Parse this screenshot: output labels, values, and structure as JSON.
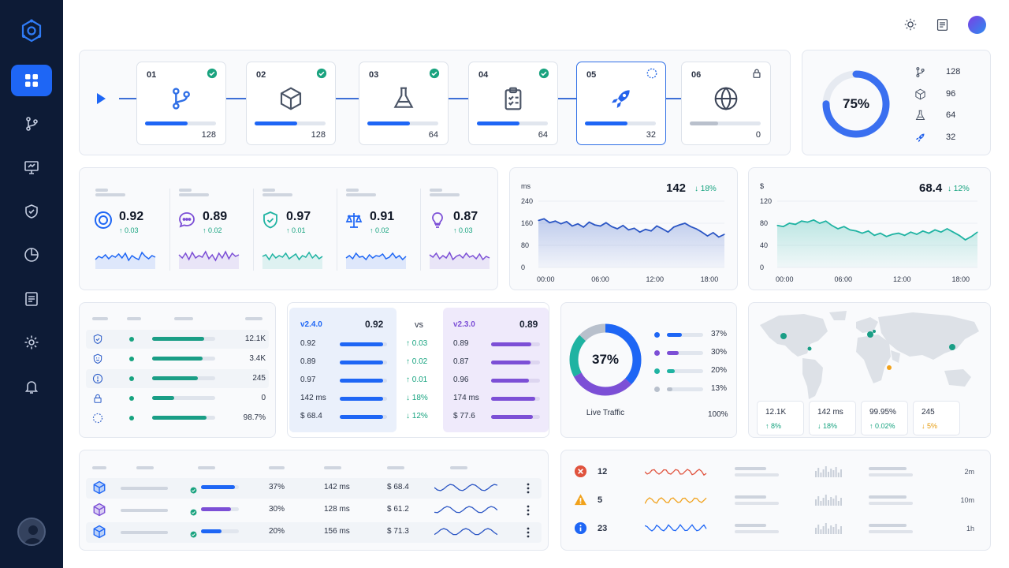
{
  "sidebar": {
    "items": [
      {
        "name": "dashboard",
        "active": true
      },
      {
        "name": "branches",
        "active": false
      },
      {
        "name": "monitor",
        "active": false
      },
      {
        "name": "security",
        "active": false
      },
      {
        "name": "reports",
        "active": false
      },
      {
        "name": "documents",
        "active": false
      },
      {
        "name": "settings",
        "active": false
      },
      {
        "name": "notifications",
        "active": false
      }
    ]
  },
  "colors": {
    "accent": "#1e66f5",
    "purple": "#7c4fd6",
    "teal": "#1fb3a2",
    "sidebar": "#0d1b36",
    "green": "#16a37f",
    "red": "#e0533e",
    "amber": "#f1a21c"
  },
  "pipeline": {
    "stages": [
      {
        "num": "01",
        "count": "128",
        "icon": "git-branch-icon",
        "status": "done",
        "progress": 0.6
      },
      {
        "num": "02",
        "count": "128",
        "icon": "box-icon",
        "status": "done",
        "progress": 0.6
      },
      {
        "num": "03",
        "count": "64",
        "icon": "flask-icon",
        "status": "done",
        "progress": 0.6
      },
      {
        "num": "04",
        "count": "64",
        "icon": "clipboard-icon",
        "status": "done",
        "progress": 0.6
      },
      {
        "num": "05",
        "count": "32",
        "icon": "rocket-icon",
        "status": "running",
        "progress": 0.6
      },
      {
        "num": "06",
        "count": "0",
        "icon": "globe-icon",
        "status": "locked",
        "progress": 0.4
      }
    ]
  },
  "summary": {
    "percent": "75%",
    "value": 0.75,
    "items": [
      {
        "icon": "git-branch-icon",
        "value": "128"
      },
      {
        "icon": "box-icon",
        "value": "96"
      },
      {
        "icon": "flask-icon",
        "value": "64"
      },
      {
        "icon": "rocket-icon",
        "value": "32"
      }
    ]
  },
  "metrics": [
    {
      "icon": "target-icon",
      "value": "0.92",
      "delta": "↑ 0.03",
      "color": "#1e66f5"
    },
    {
      "icon": "chat-icon",
      "value": "0.89",
      "delta": "↑ 0.02",
      "color": "#7c4fd6"
    },
    {
      "icon": "shield-icon",
      "value": "0.97",
      "delta": "↑ 0.01",
      "color": "#1fb3a2"
    },
    {
      "icon": "scale-icon",
      "value": "0.91",
      "delta": "↑ 0.02",
      "color": "#1e66f5"
    },
    {
      "icon": "bulb-icon",
      "value": "0.87",
      "delta": "↑ 0.03",
      "color": "#7c4fd6"
    }
  ],
  "chart_data": [
    {
      "type": "area",
      "unit": "ms",
      "value": "142",
      "delta": "↓ 18%",
      "ylim": [
        0,
        240
      ],
      "yticks": [
        "240",
        "160",
        "80",
        "0"
      ],
      "xticks": [
        "00:00",
        "06:00",
        "12:00",
        "18:00"
      ],
      "values": [
        170,
        176,
        162,
        168,
        158,
        166,
        150,
        158,
        146,
        164,
        154,
        150,
        162,
        148,
        140,
        152,
        136,
        142,
        128,
        138,
        132,
        150,
        140,
        128,
        146,
        154,
        160,
        148,
        140,
        128,
        114,
        126,
        110,
        120
      ]
    },
    {
      "type": "area",
      "unit": "$",
      "value": "68.4",
      "delta": "↓ 12%",
      "ylim": [
        0,
        120
      ],
      "yticks": [
        "120",
        "80",
        "40",
        "0"
      ],
      "xticks": [
        "00:00",
        "06:00",
        "12:00",
        "18:00"
      ],
      "values": [
        76,
        74,
        80,
        78,
        84,
        82,
        86,
        80,
        84,
        76,
        70,
        74,
        68,
        66,
        62,
        66,
        58,
        62,
        56,
        60,
        62,
        58,
        64,
        60,
        66,
        62,
        68,
        64,
        70,
        64,
        58,
        50,
        56,
        64
      ]
    },
    {
      "type": "pie",
      "title": "Live Traffic",
      "center": "37%",
      "total": "100%",
      "series": [
        {
          "value": 37,
          "label": "37%",
          "color": "#1e66f5"
        },
        {
          "value": 30,
          "label": "30%",
          "color": "#7c4fd6"
        },
        {
          "value": 20,
          "label": "20%",
          "color": "#1fb3a2"
        },
        {
          "value": 13,
          "label": "13%",
          "color": "#b8c0cc"
        }
      ]
    }
  ],
  "status_list": [
    {
      "icon": "shield-icon",
      "value": "12.1K",
      "fill": 0.82
    },
    {
      "icon": "mask-icon",
      "value": "3.4K",
      "fill": 0.8
    },
    {
      "icon": "alert-circle-icon",
      "value": "245",
      "fill": 0.73
    },
    {
      "icon": "lock-icon",
      "value": "0",
      "fill": 0.35
    },
    {
      "icon": "dashed-circle-icon",
      "value": "98.7%",
      "fill": 0.86
    }
  ],
  "compare": {
    "vs": "vs",
    "left": {
      "version": "v2.4.0",
      "score": "0.92",
      "rows": [
        "0.92",
        "0.89",
        "0.97",
        "142 ms",
        "$ 68.4"
      ]
    },
    "deltas": [
      "↑ 0.03",
      "↑ 0.02",
      "↑ 0.01",
      "↓ 18%",
      "↓ 12%"
    ],
    "right": {
      "version": "v2.3.0",
      "score": "0.89",
      "rows": [
        "0.89",
        "0.87",
        "0.96",
        "174 ms",
        "$ 77.6"
      ]
    }
  },
  "map": {
    "stats": [
      {
        "value": "12.1K",
        "delta": "↑ 8%"
      },
      {
        "value": "142 ms",
        "delta": "↓ 18%"
      },
      {
        "value": "99.95%",
        "delta": "↑ 0.02%"
      },
      {
        "value": "245",
        "delta": "↓ 5%"
      }
    ]
  },
  "deployments": [
    {
      "icon": "cube-icon",
      "pct": "37%",
      "latency": "142 ms",
      "cost": "$ 68.4",
      "fill": 0.9,
      "color": "#1e66f5"
    },
    {
      "icon": "cube-icon",
      "pct": "30%",
      "latency": "128 ms",
      "cost": "$ 61.2",
      "fill": 0.8,
      "color": "#7c4fd6"
    },
    {
      "icon": "cube-icon",
      "pct": "20%",
      "latency": "156 ms",
      "cost": "$ 71.3",
      "fill": 0.55,
      "color": "#1e66f5"
    }
  ],
  "alerts": [
    {
      "icon": "error-icon",
      "count": "12",
      "time": "2m",
      "color": "#e0533e"
    },
    {
      "icon": "warning-icon",
      "count": "5",
      "time": "10m",
      "color": "#f1a21c"
    },
    {
      "icon": "info-icon",
      "count": "23",
      "time": "1h",
      "color": "#1e66f5"
    }
  ]
}
